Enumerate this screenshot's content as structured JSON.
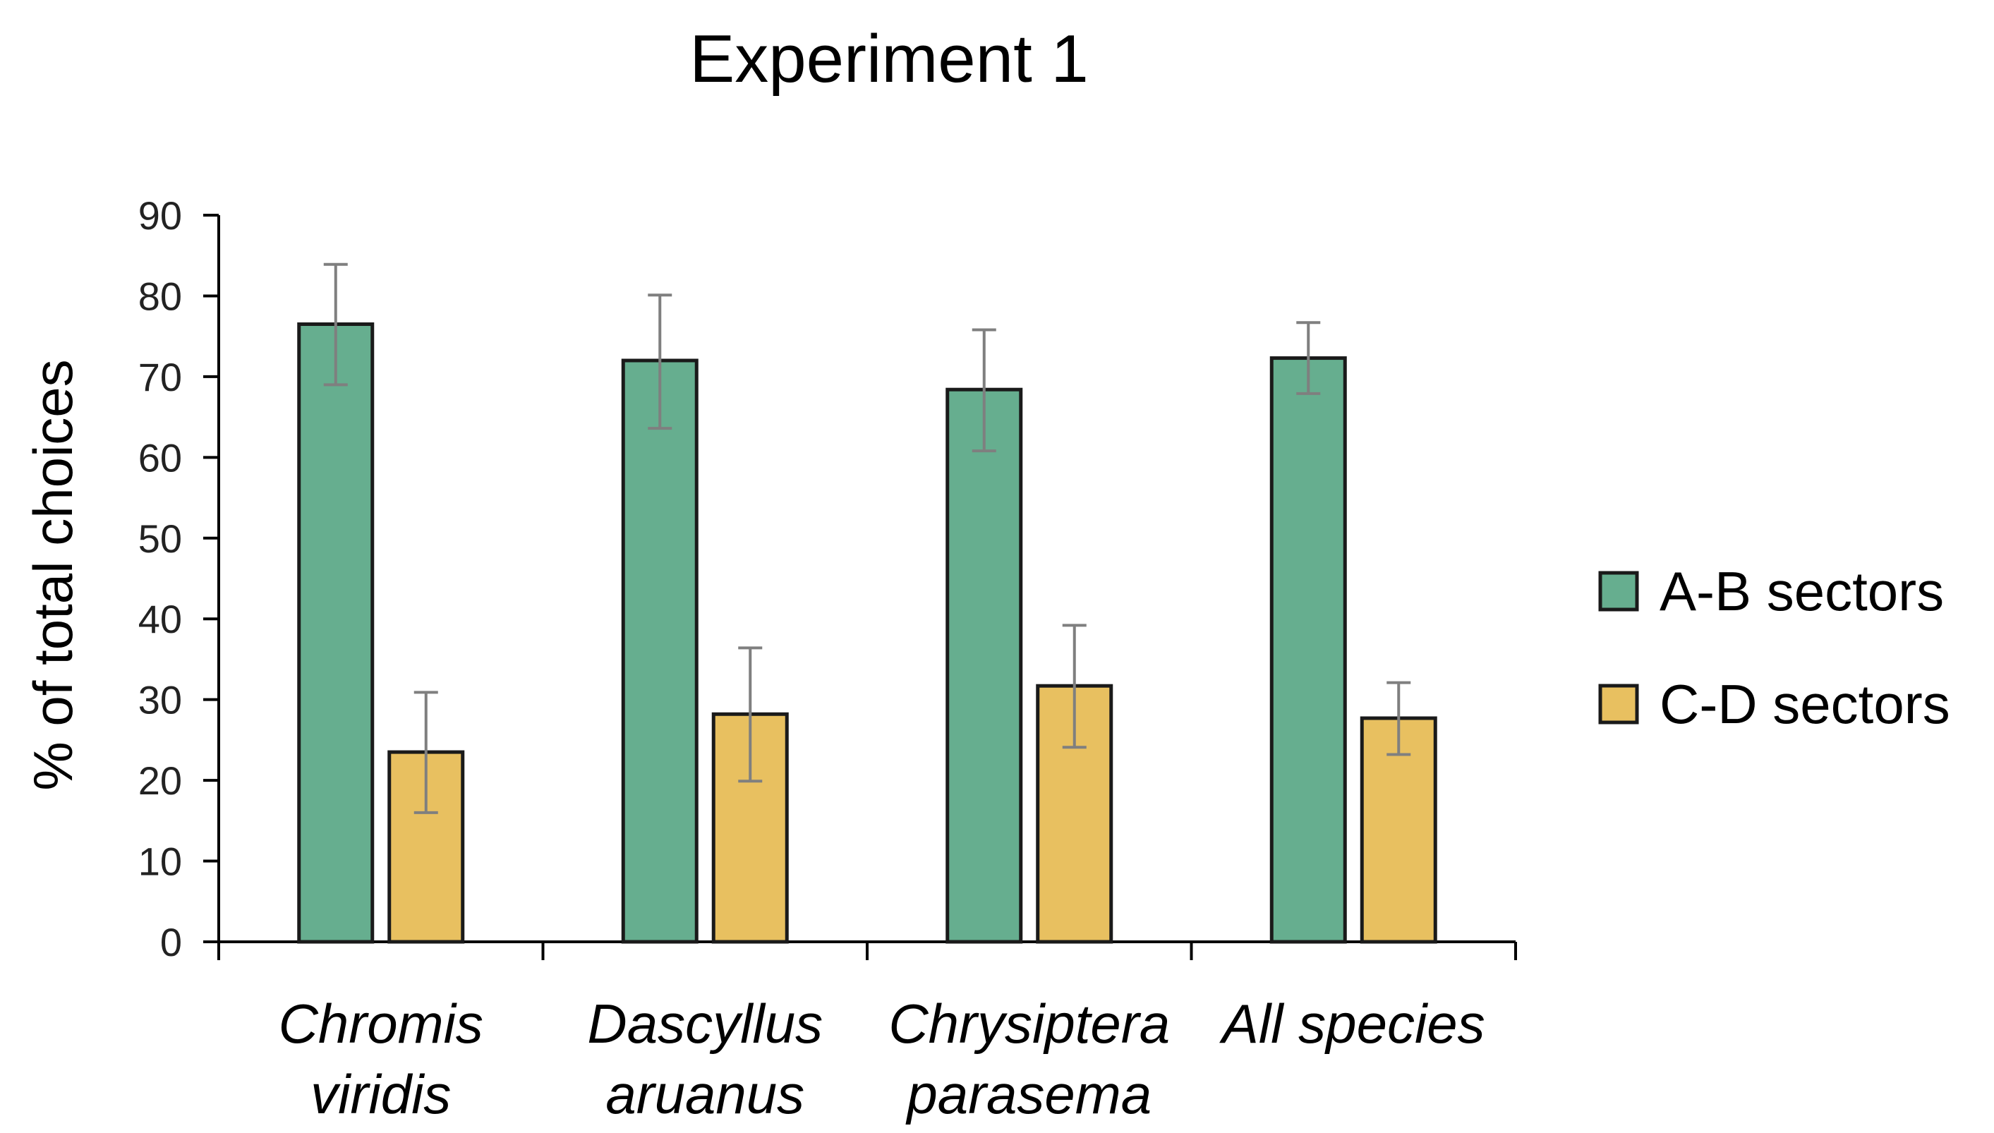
{
  "chart_data": {
    "type": "bar",
    "title": "Experiment 1",
    "xlabel": "",
    "ylabel": "% of total choices",
    "ylim": [
      0,
      90
    ],
    "yticks": [
      0,
      10,
      20,
      30,
      40,
      50,
      60,
      70,
      80,
      90
    ],
    "categories": [
      [
        "Chromis",
        "viridis"
      ],
      [
        "Dascyllus",
        "aruanus"
      ],
      [
        "Chrysiptera",
        "parasema"
      ],
      [
        "All species"
      ]
    ],
    "series": [
      {
        "name": "A-B sectors",
        "color": "#66ae8f",
        "values": [
          76.5,
          72.0,
          68.4,
          72.3
        ],
        "err_low": [
          69.0,
          63.6,
          60.8,
          67.9
        ],
        "err_high": [
          83.9,
          80.1,
          75.8,
          76.7
        ]
      },
      {
        "name": "C-D sectors",
        "color": "#e8c060",
        "values": [
          23.5,
          28.2,
          31.7,
          27.7
        ],
        "err_low": [
          16.0,
          19.9,
          24.1,
          23.2
        ],
        "err_high": [
          30.9,
          36.4,
          39.2,
          32.1
        ]
      }
    ],
    "grid": false,
    "legend": "right"
  }
}
